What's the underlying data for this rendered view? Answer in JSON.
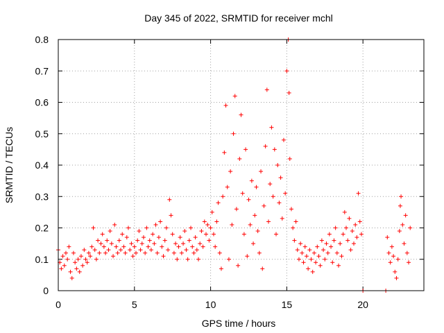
{
  "chart_data": {
    "type": "scatter",
    "title": "Day 345 of 2022, SRMTID for receiver mchl",
    "xlabel": "GPS time / hours",
    "ylabel": "SRMTID / TECUs",
    "xlim": [
      0,
      24
    ],
    "ylim": [
      0,
      0.8
    ],
    "xticks": [
      0,
      5,
      10,
      15,
      20
    ],
    "xtick_labels": [
      "0",
      "5",
      "10",
      "15",
      "20"
    ],
    "yticks": [
      0,
      0.1,
      0.2,
      0.3,
      0.4,
      0.5,
      0.6,
      0.7,
      0.8
    ],
    "ytick_labels": [
      "0",
      "0.1",
      "0.2",
      "0.3",
      "0.4",
      "0.5",
      "0.6",
      "0.7",
      "0.8"
    ],
    "grid": true,
    "marker": "+",
    "color": "#ff0000",
    "series": [
      {
        "name": "SRMTID",
        "points": [
          [
            0.0,
            0.13
          ],
          [
            0.1,
            0.09
          ],
          [
            0.2,
            0.07
          ],
          [
            0.3,
            0.11
          ],
          [
            0.4,
            0.08
          ],
          [
            0.5,
            0.12
          ],
          [
            0.6,
            0.1
          ],
          [
            0.7,
            0.14
          ],
          [
            0.8,
            0.06
          ],
          [
            0.9,
            0.04
          ],
          [
            1.0,
            0.12
          ],
          [
            1.1,
            0.09
          ],
          [
            1.2,
            0.07
          ],
          [
            1.3,
            0.1
          ],
          [
            1.4,
            0.06
          ],
          [
            1.5,
            0.11
          ],
          [
            1.6,
            0.08
          ],
          [
            1.7,
            0.13
          ],
          [
            1.8,
            0.1
          ],
          [
            1.9,
            0.09
          ],
          [
            2.0,
            0.12
          ],
          [
            2.1,
            0.11
          ],
          [
            2.2,
            0.14
          ],
          [
            2.3,
            0.2
          ],
          [
            2.4,
            0.13
          ],
          [
            2.5,
            0.1
          ],
          [
            2.6,
            0.16
          ],
          [
            2.7,
            0.12
          ],
          [
            2.8,
            0.15
          ],
          [
            2.9,
            0.18
          ],
          [
            3.0,
            0.14
          ],
          [
            3.1,
            0.12
          ],
          [
            3.2,
            0.16
          ],
          [
            3.3,
            0.13
          ],
          [
            3.4,
            0.19
          ],
          [
            3.5,
            0.15
          ],
          [
            3.6,
            0.11
          ],
          [
            3.7,
            0.21
          ],
          [
            3.8,
            0.14
          ],
          [
            3.9,
            0.12
          ],
          [
            4.0,
            0.16
          ],
          [
            4.1,
            0.13
          ],
          [
            4.2,
            0.18
          ],
          [
            4.3,
            0.14
          ],
          [
            4.4,
            0.12
          ],
          [
            4.5,
            0.17
          ],
          [
            4.6,
            0.2
          ],
          [
            4.7,
            0.13
          ],
          [
            4.8,
            0.15
          ],
          [
            4.9,
            0.11
          ],
          [
            5.0,
            0.14
          ],
          [
            5.1,
            0.12
          ],
          [
            5.2,
            0.16
          ],
          [
            5.3,
            0.19
          ],
          [
            5.4,
            0.13
          ],
          [
            5.5,
            0.15
          ],
          [
            5.6,
            0.17
          ],
          [
            5.7,
            0.12
          ],
          [
            5.8,
            0.2
          ],
          [
            5.9,
            0.14
          ],
          [
            6.0,
            0.16
          ],
          [
            6.1,
            0.13
          ],
          [
            6.2,
            0.18
          ],
          [
            6.3,
            0.15
          ],
          [
            6.4,
            0.21
          ],
          [
            6.5,
            0.12
          ],
          [
            6.6,
            0.17
          ],
          [
            6.7,
            0.22
          ],
          [
            6.8,
            0.14
          ],
          [
            6.9,
            0.11
          ],
          [
            7.0,
            0.16
          ],
          [
            7.1,
            0.2
          ],
          [
            7.2,
            0.13
          ],
          [
            7.3,
            0.29
          ],
          [
            7.4,
            0.24
          ],
          [
            7.5,
            0.18
          ],
          [
            7.6,
            0.12
          ],
          [
            7.7,
            0.15
          ],
          [
            7.8,
            0.1
          ],
          [
            7.9,
            0.14
          ],
          [
            8.0,
            0.17
          ],
          [
            8.1,
            0.12
          ],
          [
            8.2,
            0.15
          ],
          [
            8.3,
            0.19
          ],
          [
            8.4,
            0.13
          ],
          [
            8.5,
            0.1
          ],
          [
            8.6,
            0.16
          ],
          [
            8.7,
            0.2
          ],
          [
            8.8,
            0.14
          ],
          [
            8.9,
            0.12
          ],
          [
            9.0,
            0.17
          ],
          [
            9.1,
            0.13
          ],
          [
            9.2,
            0.1
          ],
          [
            9.3,
            0.15
          ],
          [
            9.4,
            0.19
          ],
          [
            9.5,
            0.14
          ],
          [
            9.6,
            0.22
          ],
          [
            9.7,
            0.18
          ],
          [
            9.8,
            0.21
          ],
          [
            9.9,
            0.16
          ],
          [
            10.0,
            0.2
          ],
          [
            10.1,
            0.25
          ],
          [
            10.2,
            0.18
          ],
          [
            10.3,
            0.14
          ],
          [
            10.4,
            0.22
          ],
          [
            10.5,
            0.28
          ],
          [
            10.6,
            0.12
          ],
          [
            10.7,
            0.07
          ],
          [
            10.8,
            0.3
          ],
          [
            10.9,
            0.44
          ],
          [
            11.0,
            0.59
          ],
          [
            11.1,
            0.33
          ],
          [
            11.2,
            0.1
          ],
          [
            11.3,
            0.38
          ],
          [
            11.4,
            0.21
          ],
          [
            11.5,
            0.5
          ],
          [
            11.6,
            0.62
          ],
          [
            11.7,
            0.26
          ],
          [
            11.8,
            0.08
          ],
          [
            11.9,
            0.42
          ],
          [
            12.0,
            0.56
          ],
          [
            12.1,
            0.31
          ],
          [
            12.2,
            0.18
          ],
          [
            12.3,
            0.45
          ],
          [
            12.4,
            0.11
          ],
          [
            12.5,
            0.29
          ],
          [
            12.6,
            0.21
          ],
          [
            12.7,
            0.35
          ],
          [
            12.8,
            0.15
          ],
          [
            12.9,
            0.24
          ],
          [
            13.0,
            0.33
          ],
          [
            13.1,
            0.19
          ],
          [
            13.2,
            0.12
          ],
          [
            13.3,
            0.38
          ],
          [
            13.4,
            0.07
          ],
          [
            13.5,
            0.27
          ],
          [
            13.6,
            0.46
          ],
          [
            13.7,
            0.64
          ],
          [
            13.8,
            0.22
          ],
          [
            13.9,
            0.34
          ],
          [
            14.0,
            0.52
          ],
          [
            14.1,
            0.3
          ],
          [
            14.2,
            0.45
          ],
          [
            14.3,
            0.18
          ],
          [
            14.4,
            0.4
          ],
          [
            14.5,
            0.28
          ],
          [
            14.6,
            0.36
          ],
          [
            14.7,
            0.23
          ],
          [
            14.8,
            0.48
          ],
          [
            14.9,
            0.31
          ],
          [
            15.0,
            0.7
          ],
          [
            15.1,
            0.8
          ],
          [
            15.15,
            0.63
          ],
          [
            15.2,
            0.42
          ],
          [
            15.3,
            0.26
          ],
          [
            15.4,
            0.2
          ],
          [
            15.5,
            0.16
          ],
          [
            15.6,
            0.22
          ],
          [
            15.7,
            0.13
          ],
          [
            15.8,
            0.1
          ],
          [
            15.9,
            0.15
          ],
          [
            16.0,
            0.12
          ],
          [
            16.1,
            0.09
          ],
          [
            16.2,
            0.14
          ],
          [
            16.3,
            0.11
          ],
          [
            16.4,
            0.07
          ],
          [
            16.5,
            0.13
          ],
          [
            16.6,
            0.1
          ],
          [
            16.7,
            0.06
          ],
          [
            16.8,
            0.12
          ],
          [
            16.9,
            0.09
          ],
          [
            17.0,
            0.14
          ],
          [
            17.1,
            0.11
          ],
          [
            17.2,
            0.08
          ],
          [
            17.3,
            0.16
          ],
          [
            17.4,
            0.13
          ],
          [
            17.5,
            0.1
          ],
          [
            17.6,
            0.15
          ],
          [
            17.7,
            0.12
          ],
          [
            17.8,
            0.18
          ],
          [
            17.9,
            0.14
          ],
          [
            18.0,
            0.09
          ],
          [
            18.1,
            0.16
          ],
          [
            18.2,
            0.2
          ],
          [
            18.3,
            0.12
          ],
          [
            18.4,
            0.08
          ],
          [
            18.5,
            0.15
          ],
          [
            18.6,
            0.11
          ],
          [
            18.7,
            0.18
          ],
          [
            18.8,
            0.25
          ],
          [
            18.9,
            0.2
          ],
          [
            19.0,
            0.16
          ],
          [
            19.1,
            0.23
          ],
          [
            19.2,
            0.13
          ],
          [
            19.3,
            0.19
          ],
          [
            19.4,
            0.15
          ],
          [
            19.5,
            0.21
          ],
          [
            19.6,
            0.17
          ],
          [
            19.7,
            0.31
          ],
          [
            19.8,
            0.22
          ],
          [
            19.9,
            0.18
          ],
          [
            20.0,
            0.0
          ],
          [
            21.5,
            0.0
          ],
          [
            21.6,
            0.17
          ],
          [
            21.7,
            0.12
          ],
          [
            21.8,
            0.09
          ],
          [
            21.9,
            0.14
          ],
          [
            22.0,
            0.11
          ],
          [
            22.1,
            0.06
          ],
          [
            22.2,
            0.04
          ],
          [
            22.3,
            0.1
          ],
          [
            22.4,
            0.19
          ],
          [
            22.45,
            0.27
          ],
          [
            22.5,
            0.3
          ],
          [
            22.6,
            0.21
          ],
          [
            22.7,
            0.15
          ],
          [
            22.8,
            0.24
          ],
          [
            22.9,
            0.12
          ],
          [
            23.0,
            0.09
          ],
          [
            23.1,
            0.2
          ]
        ]
      }
    ]
  }
}
